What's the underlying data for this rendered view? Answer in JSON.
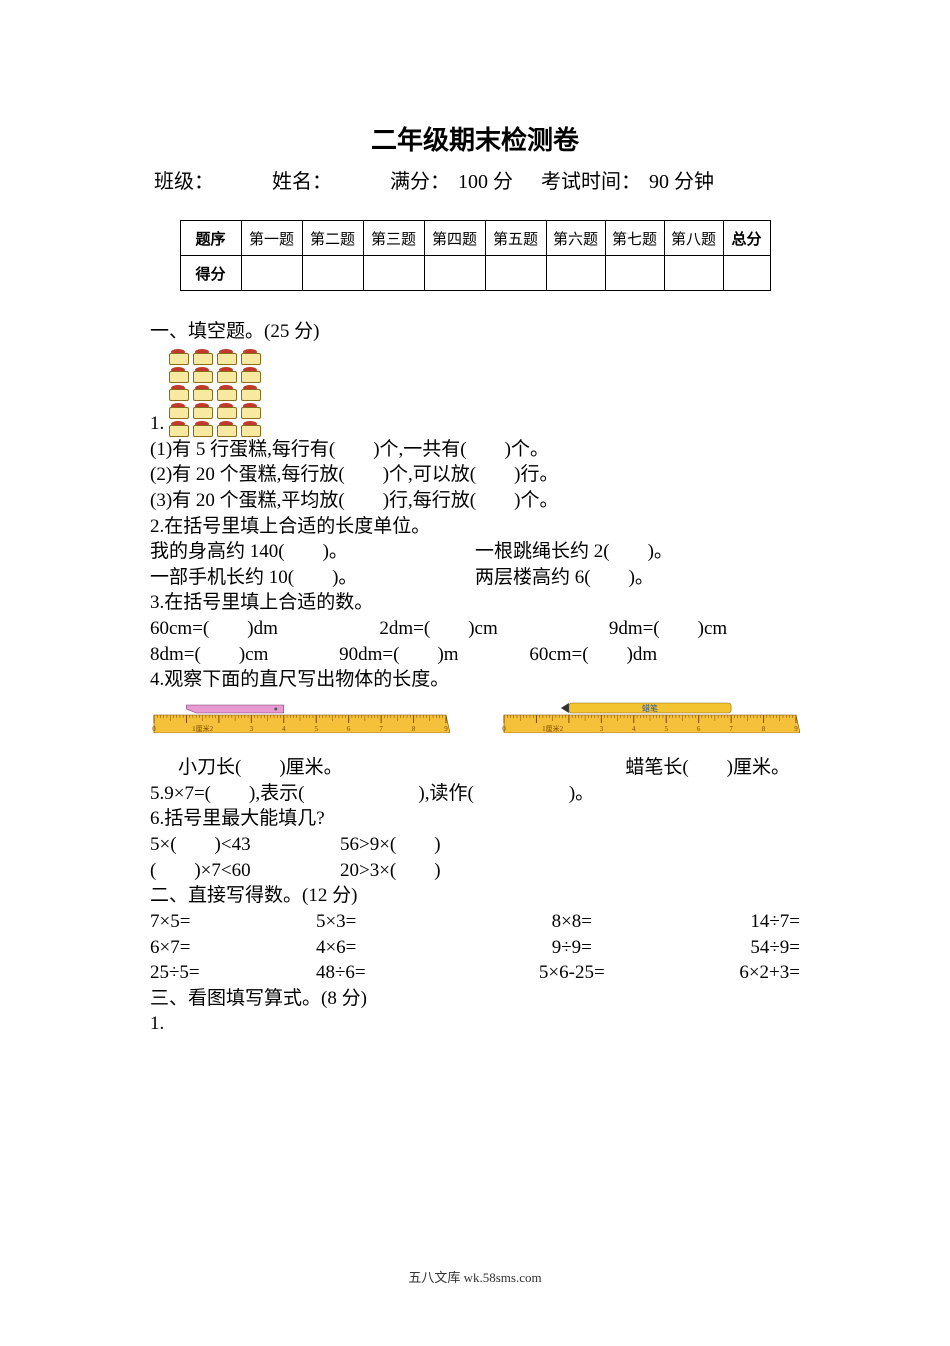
{
  "title": "二年级期末检测卷",
  "info": {
    "class_label": "班级：",
    "name_label": "姓名：",
    "full_label": "满分：",
    "full_value": "100 分",
    "time_label": "考试时间：",
    "time_value": "90 分钟"
  },
  "score_table": {
    "row1": [
      "题序",
      "第一题",
      "第二题",
      "第三题",
      "第四题",
      "第五题",
      "第六题",
      "第七题",
      "第八题",
      "总分"
    ],
    "row2_label": "得分"
  },
  "s1": {
    "heading": "一、填空题。(25 分)",
    "q1_num": "1.",
    "cake_rows": 5,
    "cake_cols": 4,
    "q1_1": "(1)有 5 行蛋糕,每行有(　　)个,一共有(　　)个。",
    "q1_2": "(2)有 20 个蛋糕,每行放(　　)个,可以放(　　)行。",
    "q1_3": "(3)有 20 个蛋糕,平均放(　　)行,每行放(　　)个。",
    "q2": "2.在括号里填上合适的长度单位。",
    "q2a_l": "我的身高约 140(　　)。",
    "q2a_r": "一根跳绳长约 2(　　)。",
    "q2b_l": "一部手机长约 10(　　)。",
    "q2b_r": "两层楼高约 6(　　)。",
    "q3": "3.在括号里填上合适的数。",
    "q3_items_r1": [
      "60cm=(　　)dm",
      "2dm=(　　)cm",
      "9dm=(　　)cm"
    ],
    "q3_items_r2": [
      "8dm=(　　)cm",
      "90dm=(　　)m",
      "60cm=(　　)dm"
    ],
    "q4": "4.观察下面的直尺写出物体的长度。",
    "ruler_left": {
      "obj_label": "小刀",
      "obj_color": "#e89ad2",
      "obj_start": 1,
      "obj_end": 4,
      "ruler_color": "#f6c13a",
      "tick_color": "#7a4a00",
      "max": 9,
      "unit_label": "1厘米2",
      "caption": "小刀长(　　)厘米。"
    },
    "ruler_right": {
      "obj_label": "蜡笔",
      "obj_color": "#f4c430",
      "obj_start": 2,
      "obj_end": 7,
      "ruler_color": "#f6c13a",
      "tick_color": "#7a4a00",
      "max": 9,
      "unit_label": "1厘米2",
      "caption": "蜡笔长(　　)厘米。"
    },
    "q5": "5.9×7=(　　),表示(　　　　　　),读作(　　　　　)。",
    "q6": "6.括号里最大能填几?",
    "q6_items": [
      "5×(　　)<43",
      "56>9×(　　)",
      "(　　)×7<60",
      "20>3×(　　)"
    ]
  },
  "s2": {
    "heading": "二、直接写得数。(12 分)",
    "rows": [
      [
        "7×5=",
        "5×3=",
        "8×8=",
        "14÷7="
      ],
      [
        "6×7=",
        "4×6=",
        "9÷9=",
        "54÷9="
      ],
      [
        "25÷5=",
        "48÷6=",
        "5×6-25=",
        "6×2+3="
      ]
    ]
  },
  "s3": {
    "heading": "三、看图填写算式。(8 分)",
    "q1": "1."
  },
  "footer": "五八文库 wk.58sms.com"
}
